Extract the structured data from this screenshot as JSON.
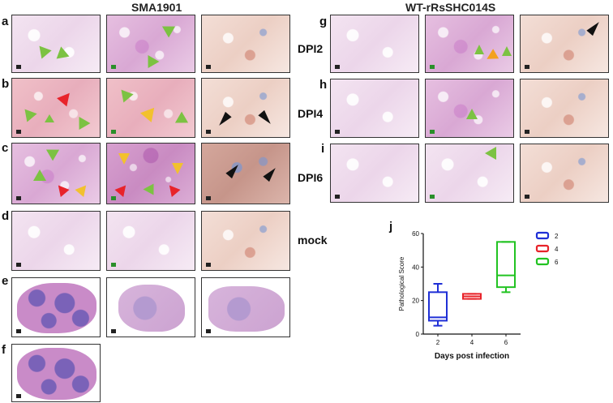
{
  "headers": {
    "left": "SMA1901",
    "right": "WT-rRsSHC014S"
  },
  "panel_labels": [
    "a",
    "b",
    "c",
    "d",
    "e",
    "f",
    "g",
    "h",
    "i",
    "j"
  ],
  "row_labels": [
    "DPI2",
    "DPI4",
    "DPI6",
    "mock"
  ],
  "colors": {
    "green_arrow": "#7cc242",
    "red_arrow": "#e8232a",
    "yellow_arrow": "#f2c12e",
    "orange_arrow": "#f3a11f",
    "black_arrow": "#111111",
    "box_2": "#1f2fd6",
    "box_4": "#e8232a",
    "box_6": "#22c322"
  },
  "chart_data": {
    "type": "box",
    "categories": [
      "2",
      "4",
      "6"
    ],
    "xlabel": "Days post infection",
    "ylabel": "Pathological Score",
    "ylim": [
      0,
      60
    ],
    "yticks": [
      0,
      20,
      40,
      60
    ],
    "legend": [
      "2",
      "4",
      "6"
    ],
    "legend_position": "top-right",
    "series": [
      {
        "name": "2",
        "min": 5,
        "q1": 8,
        "median": 10,
        "q3": 25,
        "max": 30
      },
      {
        "name": "4",
        "min": 21,
        "q1": 21,
        "median": 22.5,
        "q3": 24,
        "max": 24
      },
      {
        "name": "6",
        "min": 25,
        "q1": 28,
        "median": 35,
        "q3": 55,
        "max": 55
      }
    ]
  }
}
